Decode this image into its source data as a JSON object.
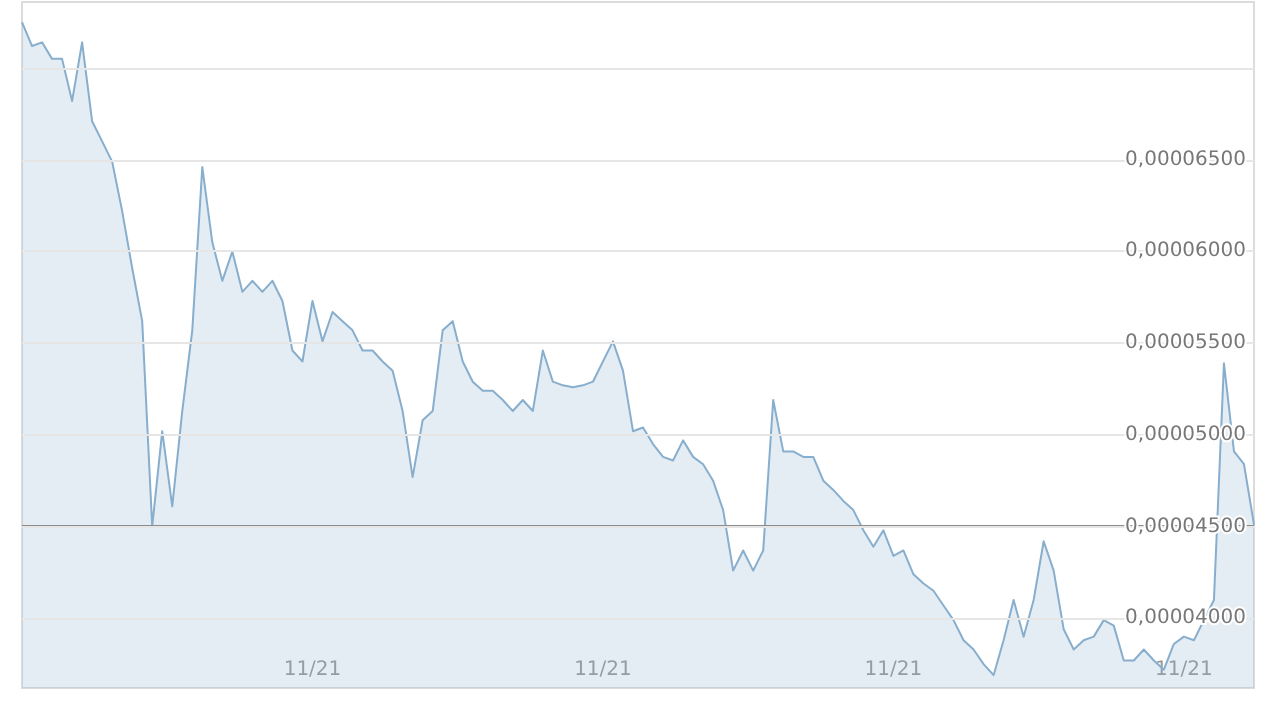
{
  "chart_data": {
    "type": "area",
    "categories": [
      null,
      null,
      null,
      null,
      null,
      null,
      null,
      null,
      null,
      null,
      null,
      null,
      null,
      null,
      null,
      null,
      null,
      null,
      null,
      null,
      null,
      null,
      null,
      null,
      null,
      null,
      null,
      null,
      null,
      "11/21",
      null,
      null,
      null,
      null,
      null,
      null,
      null,
      null,
      null,
      null,
      null,
      null,
      null,
      null,
      null,
      null,
      null,
      null,
      null,
      null,
      null,
      null,
      null,
      null,
      null,
      null,
      null,
      null,
      "11/21",
      null,
      null,
      null,
      null,
      null,
      null,
      null,
      null,
      null,
      null,
      null,
      null,
      null,
      null,
      null,
      null,
      null,
      null,
      null,
      null,
      null,
      null,
      null,
      null,
      null,
      null,
      null,
      null,
      "11/21",
      null,
      null,
      null,
      null,
      null,
      null,
      null,
      null,
      null,
      null,
      null,
      null,
      null,
      null,
      null,
      null,
      null,
      null,
      null,
      null,
      null,
      null,
      null,
      null,
      null,
      null,
      null,
      null,
      "11/21",
      null,
      null,
      null,
      null,
      null,
      null,
      null
    ],
    "series": [
      {
        "color": "#88aecd",
        "values": [
          7.25e-05,
          7.12e-05,
          7.14e-05,
          7.05e-05,
          7.05e-05,
          6.82e-05,
          7.14e-05,
          6.71e-05,
          6.6e-05,
          6.49e-05,
          6.22e-05,
          5.91e-05,
          5.62e-05,
          4.5e-05,
          5.02e-05,
          4.61e-05,
          5.13e-05,
          5.57e-05,
          6.46e-05,
          6.05e-05,
          5.84e-05,
          6e-05,
          5.78e-05,
          5.84e-05,
          5.78e-05,
          5.84e-05,
          5.73e-05,
          5.46e-05,
          5.4e-05,
          5.73e-05,
          5.51e-05,
          5.67e-05,
          5.62e-05,
          5.57e-05,
          5.46e-05,
          5.46e-05,
          5.4e-05,
          5.35e-05,
          5.13e-05,
          4.77e-05,
          5.08e-05,
          5.13e-05,
          5.57e-05,
          5.62e-05,
          5.4e-05,
          5.29e-05,
          5.24e-05,
          5.24e-05,
          5.19e-05,
          5.13e-05,
          5.19e-05,
          5.13e-05,
          5.46e-05,
          5.29e-05,
          5.27e-05,
          5.26e-05,
          5.27e-05,
          5.29e-05,
          5.4e-05,
          5.51e-05,
          5.35e-05,
          5.02e-05,
          5.04e-05,
          4.95e-05,
          4.88e-05,
          4.86e-05,
          4.97e-05,
          4.88e-05,
          4.84e-05,
          4.75e-05,
          4.59e-05,
          4.26e-05,
          4.37e-05,
          4.26e-05,
          4.37e-05,
          5.19e-05,
          4.91e-05,
          4.91e-05,
          4.88e-05,
          4.88e-05,
          4.75e-05,
          4.7e-05,
          4.64e-05,
          4.59e-05,
          4.48e-05,
          4.39e-05,
          4.48e-05,
          4.34e-05,
          4.37e-05,
          4.24e-05,
          4.19e-05,
          4.15e-05,
          4.07e-05,
          3.99e-05,
          3.88e-05,
          3.83e-05,
          3.75e-05,
          3.69e-05,
          3.88e-05,
          4.1e-05,
          3.9e-05,
          4.1e-05,
          4.42e-05,
          4.26e-05,
          3.94e-05,
          3.83e-05,
          3.88e-05,
          3.9e-05,
          3.99e-05,
          3.96e-05,
          3.77e-05,
          3.77e-05,
          3.83e-05,
          3.77e-05,
          3.72e-05,
          3.86e-05,
          3.9e-05,
          3.88e-05,
          3.99e-05,
          4.1e-05,
          5.39e-05,
          4.91e-05,
          4.84e-05,
          4.51e-05
        ]
      }
    ],
    "ylim": [
      3.62e-05,
      7.36e-05
    ],
    "yticks": [
      {
        "value": 4e-05,
        "label": "0,00004000"
      },
      {
        "value": 4.5e-05,
        "label": "0,00004500"
      },
      {
        "value": 5e-05,
        "label": "0,00005000"
      },
      {
        "value": 5.5e-05,
        "label": "0,00005500"
      },
      {
        "value": 6e-05,
        "label": "0,00006000"
      },
      {
        "value": 6.5e-05,
        "label": "0,00006500"
      },
      {
        "value": 7e-05,
        "label": null
      }
    ],
    "ref_lines": [
      {
        "axis": "y",
        "value": 4.5e-05,
        "color": "#8c8c8c"
      }
    ],
    "grid": "y",
    "marker": "none",
    "line_style": "solid"
  }
}
